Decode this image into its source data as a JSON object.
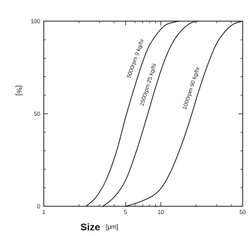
{
  "chart_data": {
    "type": "line",
    "x_scale": "log",
    "xlim": [
      1,
      50
    ],
    "ylim": [
      0,
      100
    ],
    "x_ticks": [
      {
        "value": 1,
        "label": "1"
      },
      {
        "value": 5,
        "label": "5"
      },
      {
        "value": 10,
        "label": "10"
      },
      {
        "value": 50,
        "label": "50"
      }
    ],
    "y_ticks": [
      {
        "value": 0,
        "label": "0"
      },
      {
        "value": 50,
        "label": "50"
      },
      {
        "value": 100,
        "label": "100"
      }
    ],
    "ylabel": "[%]",
    "xlabel": "Size",
    "xunit": "[μm]",
    "grid": false,
    "series": [
      {
        "name": "5000rpm 9 kg/hr",
        "x": [
          2.3,
          2.8,
          3.4,
          4.2,
          5.0,
          6.0,
          7.0,
          8.0,
          9.5,
          11.0,
          13.0,
          14.5
        ],
        "y": [
          0,
          5,
          14,
          30,
          48,
          65,
          78,
          87,
          94,
          98,
          99.5,
          100
        ]
      },
      {
        "name": "2500rpm 25 kg/hr",
        "x": [
          3.2,
          4.0,
          5.0,
          6.2,
          7.5,
          9.0,
          10.5,
          12.5,
          15.0,
          18.0,
          21.0
        ],
        "y": [
          0,
          5,
          14,
          30,
          47,
          64,
          77,
          88,
          95,
          99,
          100
        ]
      },
      {
        "name": "1000rpm 90 kg/hr",
        "x": [
          5.0,
          7.0,
          9.5,
          12.0,
          15.0,
          18.0,
          21.0,
          25.0,
          30.0,
          36.0,
          42.0,
          50.0
        ],
        "y": [
          0,
          3,
          8,
          18,
          33,
          48,
          62,
          76,
          88,
          95,
          98.5,
          100
        ]
      }
    ]
  }
}
